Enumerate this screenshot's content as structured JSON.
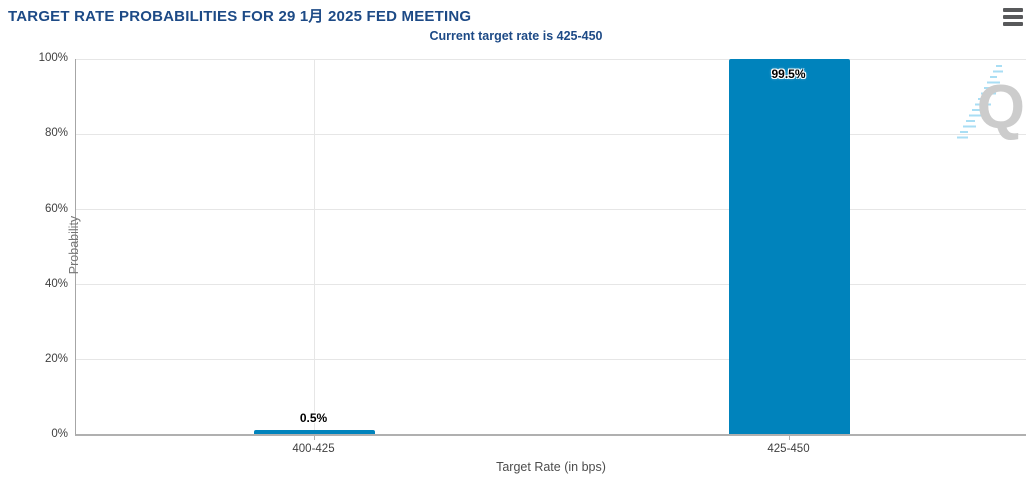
{
  "header": {
    "title": "TARGET RATE PROBABILITIES FOR 29 1月 2025 FED MEETING",
    "menu_icon": "hamburger-icon"
  },
  "chart_data": {
    "type": "bar",
    "title": "TARGET RATE PROBABILITIES FOR 29 1月 2025 FED MEETING",
    "subtitle": "Current target rate is 425-450",
    "categories": [
      "400-425",
      "425-450"
    ],
    "values": [
      0.5,
      99.5
    ],
    "value_labels": [
      "0.5%",
      "99.5%"
    ],
    "xlabel": "Target Rate (in bps)",
    "ylabel": "Probability",
    "ylim": [
      0,
      100
    ],
    "yticks": [
      "0%",
      "20%",
      "40%",
      "60%",
      "80%",
      "100%"
    ],
    "grid": true,
    "legend": "none",
    "bar_color": "#0083bc"
  },
  "watermark": {
    "letter": "Q",
    "letter_color": "#cccccc",
    "dash_color": "#a9def4"
  },
  "colors": {
    "title_text": "#1d4a86",
    "axis_text": "#3f3f3f",
    "bar": "#0083bc",
    "gridline": "#e6e6e6"
  }
}
